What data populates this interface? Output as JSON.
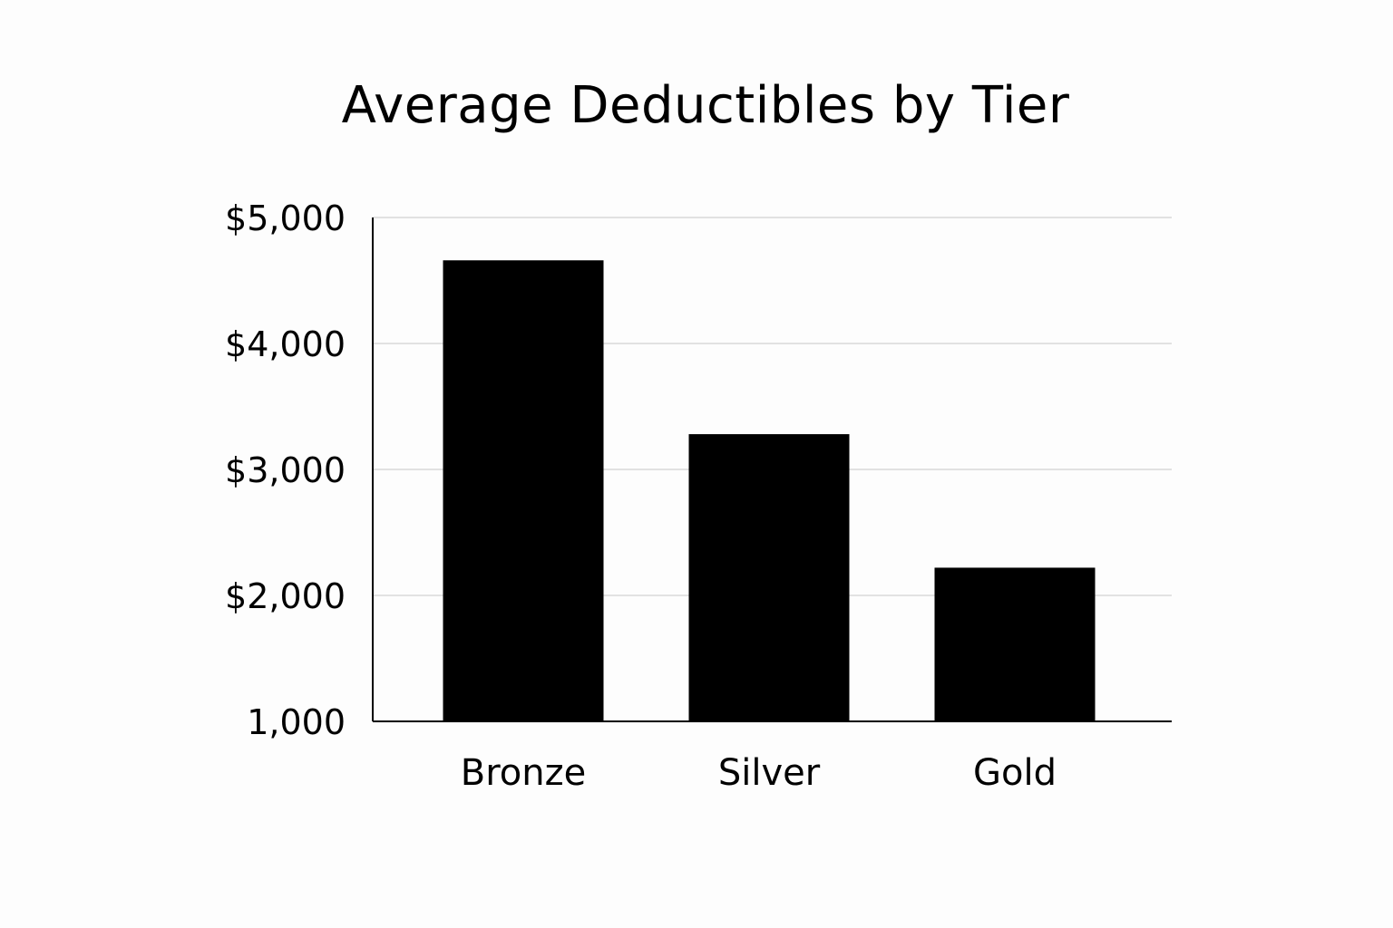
{
  "chart_data": {
    "type": "bar",
    "title": "Average Deductibles by Tier",
    "xlabel": "",
    "ylabel": "",
    "categories": [
      "Bronze",
      "Silver",
      "Gold"
    ],
    "values": [
      4660,
      3280,
      2220
    ],
    "ylim": [
      1000,
      5000
    ],
    "y_ticks": [
      {
        "value": 1000,
        "label": "1,000"
      },
      {
        "value": 2000,
        "label": "$2,000"
      },
      {
        "value": 3000,
        "label": "$3,000"
      },
      {
        "value": 4000,
        "label": "$4,000"
      },
      {
        "value": 5000,
        "label": "$5,000"
      }
    ],
    "grid": true,
    "bar_color": "#000000",
    "grid_color": "#d9d9d9"
  }
}
